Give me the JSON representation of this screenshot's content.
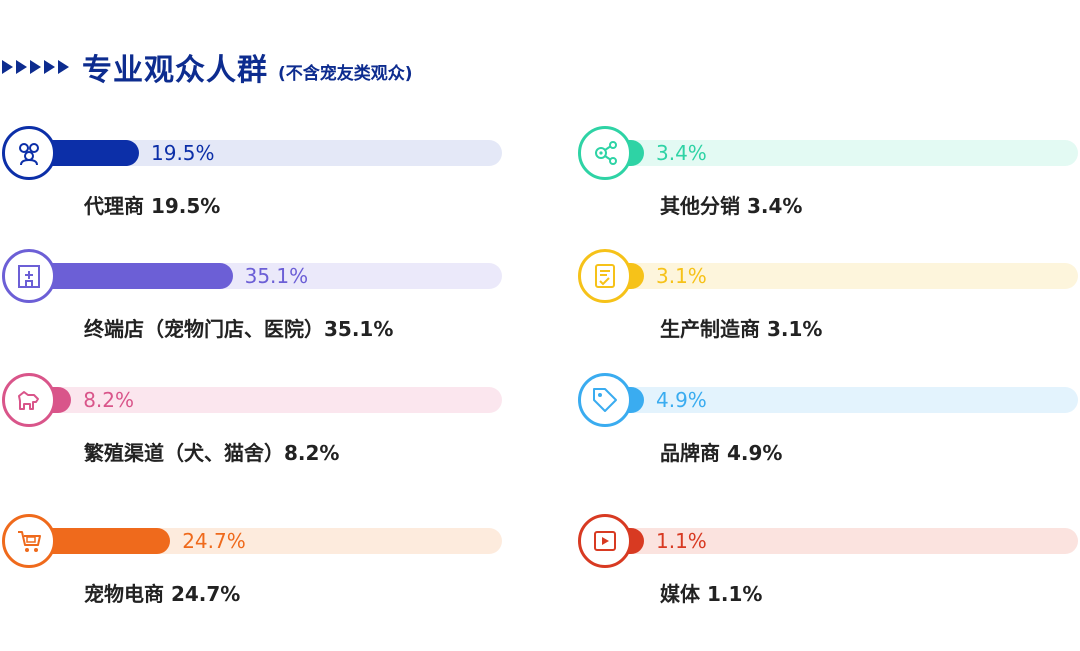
{
  "header": {
    "title": "专业观众人群",
    "subtitle": "(不含宠友类观众)"
  },
  "chart_data": {
    "type": "bar",
    "title": "专业观众人群",
    "subtitle": "(不含宠友类观众)",
    "unit": "%",
    "xlim": [
      0,
      100
    ],
    "items": [
      {
        "name": "代理商",
        "value": 19.5,
        "pct_label": "19.5%",
        "label": "代理商 19.5%",
        "color": "#0c2fa8",
        "track": "#e4e8f7",
        "icon": "people-group-icon"
      },
      {
        "name": "终端店（宠物门店、医院）",
        "value": 35.1,
        "pct_label": "35.1%",
        "label": "终端店（宠物门店、医院）35.1%",
        "color": "#6c5fd6",
        "track": "#ebe9fa",
        "icon": "clinic-building-icon"
      },
      {
        "name": "繁殖渠道（犬、猫舍）",
        "value": 8.2,
        "pct_label": "8.2%",
        "label": "繁殖渠道（犬、猫舍）8.2%",
        "color": "#d9558a",
        "track": "#fbe6ee",
        "icon": "dog-icon"
      },
      {
        "name": "宠物电商",
        "value": 24.7,
        "pct_label": "24.7%",
        "label": "宠物电商 24.7%",
        "color": "#ef6a1c",
        "track": "#fdebdd",
        "icon": "shopping-cart-icon"
      },
      {
        "name": "其他分销",
        "value": 3.4,
        "pct_label": "3.4%",
        "label": "其他分销 3.4%",
        "color": "#2ed3a5",
        "track": "#e3faf3",
        "icon": "share-network-icon"
      },
      {
        "name": "生产制造商",
        "value": 3.1,
        "pct_label": "3.1%",
        "label": "生产制造商 3.1%",
        "color": "#f6c219",
        "track": "#fdf5dc",
        "icon": "document-check-icon"
      },
      {
        "name": "品牌商",
        "value": 4.9,
        "pct_label": "4.9%",
        "label": "品牌商 4.9%",
        "color": "#3aacf0",
        "track": "#e3f3fd",
        "icon": "tag-icon"
      },
      {
        "name": "媒体",
        "value": 1.1,
        "pct_label": "1.1%",
        "label": "媒体 1.1%",
        "color": "#d83a22",
        "track": "#fbe3df",
        "icon": "play-video-icon"
      }
    ]
  }
}
